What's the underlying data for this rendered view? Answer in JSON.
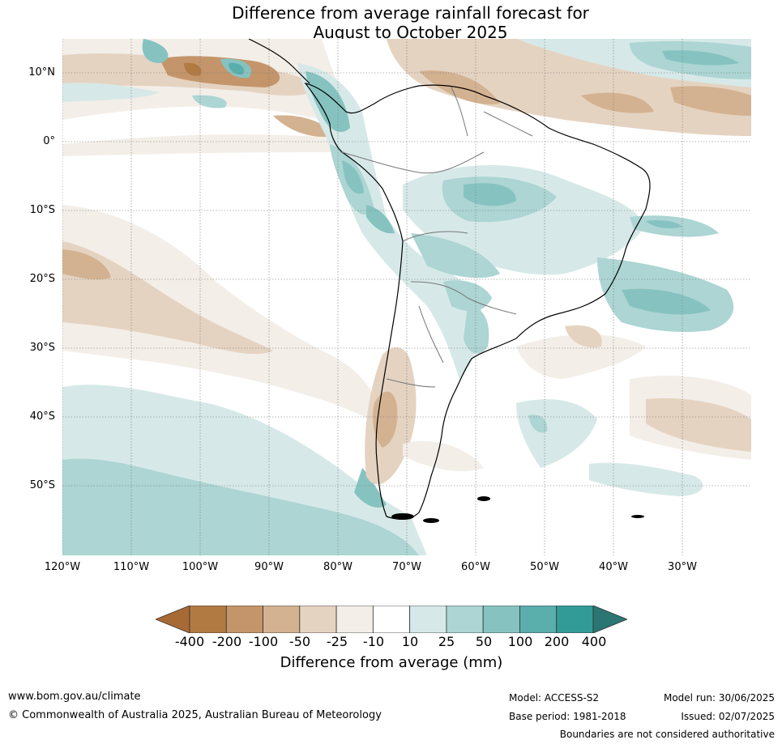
{
  "title_line1": "Difference from average rainfall forecast for",
  "title_line2": "August to October 2025",
  "lat_labels": [
    "10°N",
    "0°",
    "10°S",
    "20°S",
    "30°S",
    "40°S",
    "50°S"
  ],
  "lon_labels": [
    "120°W",
    "110°W",
    "100°W",
    "90°W",
    "80°W",
    "70°W",
    "60°W",
    "50°W",
    "40°W",
    "30°W"
  ],
  "colorbar": {
    "title": "Difference from average (mm)",
    "tick_labels": [
      "-400",
      "-200",
      "-100",
      "-50",
      "-25",
      "-10",
      "10",
      "25",
      "50",
      "100",
      "200",
      "400"
    ],
    "colors": [
      "#a86a34",
      "#b27a43",
      "#c4956a",
      "#d3b291",
      "#e5d3c1",
      "#f3eee8",
      "#ffffff",
      "#d6e9e8",
      "#acd5d3",
      "#86c3c0",
      "#5aaeab",
      "#329b97",
      "#2b7672"
    ]
  },
  "footer": {
    "website": "www.bom.gov.au/climate",
    "copyright": "© Commonwealth of Australia 2025, Australian Bureau of Meteorology",
    "model": "Model: ACCESS-S2",
    "base_period": "Base period: 1981-2018",
    "model_run": "Model run: 30/06/2025",
    "issued": "Issued: 02/07/2025",
    "disclaimer": "Boundaries are not considered authoritative"
  }
}
